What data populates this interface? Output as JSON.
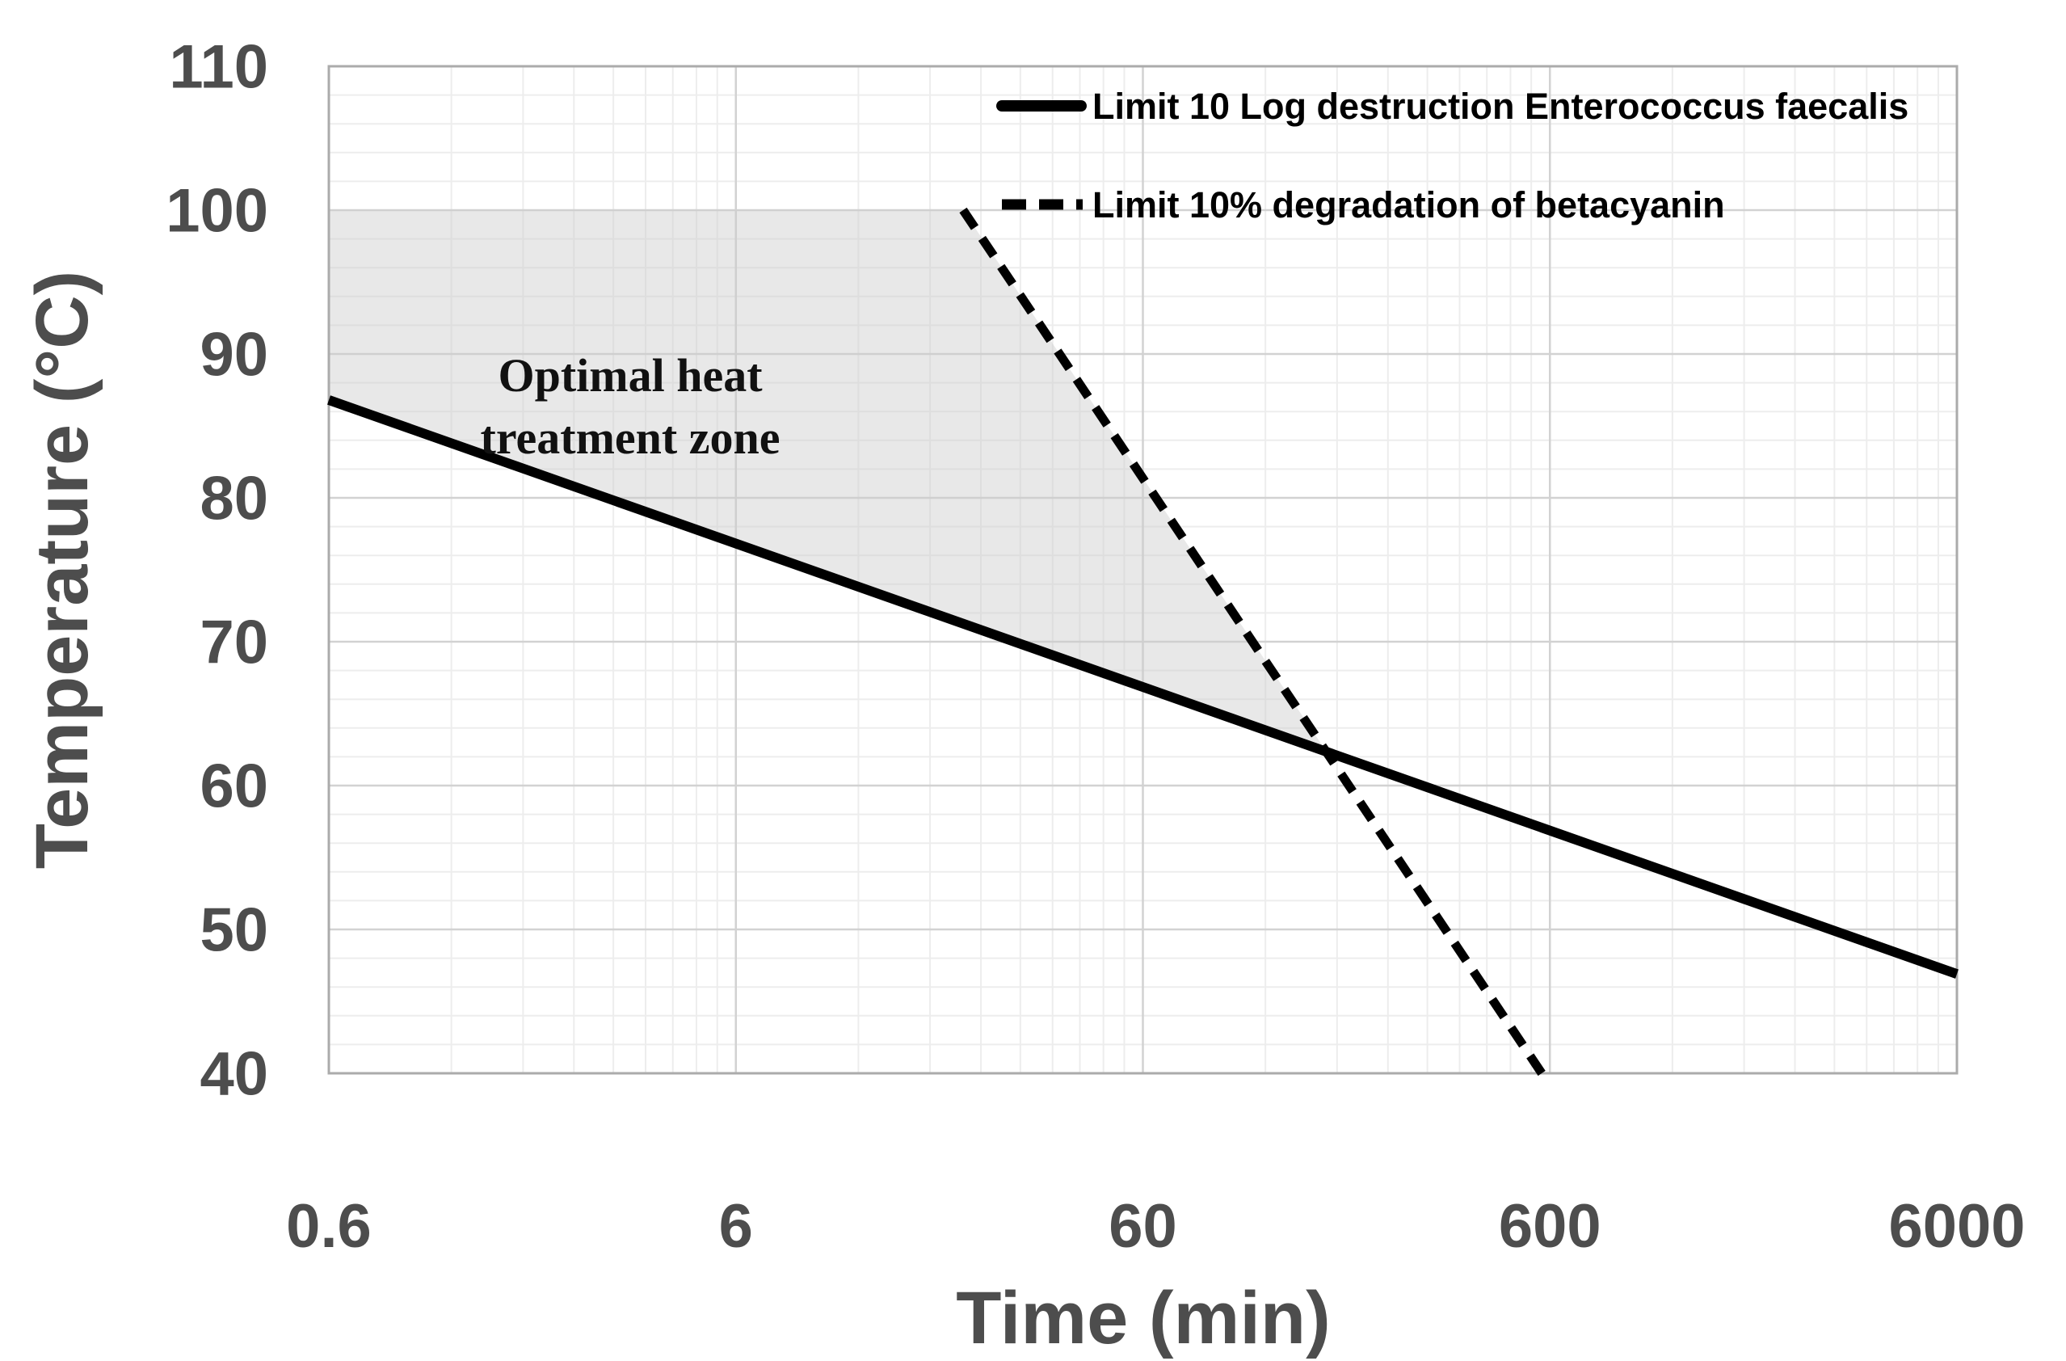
{
  "figure": {
    "background": "#ffffff"
  },
  "chart_data": {
    "type": "line",
    "title": "",
    "xlabel": "Time (min)",
    "ylabel": "Temperature (°C)",
    "x_scale": "log",
    "xlim": [
      0.6,
      6000
    ],
    "ylim": [
      40,
      110
    ],
    "x_ticks": [
      "0.6",
      "6",
      "60",
      "600",
      "6000"
    ],
    "y_ticks": [
      110,
      100,
      90,
      80,
      70,
      60,
      50,
      40
    ],
    "y_minor_step": 2,
    "grid": {
      "major": true,
      "minor": true
    },
    "legend_position": "top-right",
    "series": [
      {
        "name": "Limit 10 Log destruction Enterococcus faecalis",
        "line_style": "solid",
        "color": "#000000",
        "points": [
          [
            0.6,
            86.8
          ],
          [
            6000,
            46.9
          ]
        ]
      },
      {
        "name": "Limit 10% degradation of betacyanin",
        "line_style": "dashed",
        "color": "#000000",
        "points": [
          [
            21.7,
            100
          ],
          [
            573,
            40
          ]
        ]
      }
    ],
    "annotations": {
      "zone_label_lines": [
        "Optimal heat",
        "treatment zone"
      ],
      "zone_label_center": [
        3.3,
        86.5
      ],
      "zone_fill": "#cccccc",
      "zone_fill_opacity": 0.45,
      "zone_vertices": [
        [
          0.6,
          100
        ],
        [
          21.7,
          100
        ],
        [
          170,
          62.3
        ],
        [
          0.6,
          86.8
        ]
      ],
      "lines_intersection": [
        170,
        62.3
      ]
    },
    "colors": {
      "axis_text": "#4d4d4d",
      "legend_text": "#000000",
      "grid_major": "#d2d2d2",
      "grid_minor": "#ededed",
      "plot_border": "#ababab"
    }
  }
}
